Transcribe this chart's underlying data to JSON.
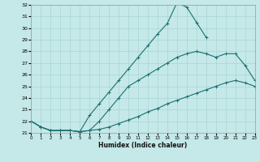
{
  "xlabel": "Humidex (Indice chaleur)",
  "background_color": "#c5e8e8",
  "grid_color": "#aad4d4",
  "line_color": "#1a7070",
  "xlim": [
    0,
    23
  ],
  "ylim": [
    21,
    32
  ],
  "yticks": [
    21,
    22,
    23,
    24,
    25,
    26,
    27,
    28,
    29,
    30,
    31,
    32
  ],
  "xticks": [
    0,
    1,
    2,
    3,
    4,
    5,
    6,
    7,
    8,
    9,
    10,
    11,
    12,
    13,
    14,
    15,
    16,
    17,
    18,
    19,
    20,
    21,
    22,
    23
  ],
  "series": [
    {
      "x": [
        0,
        1,
        2,
        3,
        4,
        5,
        6,
        7,
        8,
        9,
        10,
        11,
        12,
        13,
        14,
        15,
        16,
        17,
        18,
        19,
        20,
        21,
        22,
        23
      ],
      "y": [
        22.0,
        21.5,
        21.2,
        21.2,
        21.2,
        21.1,
        21.2,
        21.3,
        21.5,
        21.8,
        22.1,
        22.4,
        22.8,
        23.1,
        23.5,
        23.8,
        24.1,
        24.4,
        24.7,
        25.0,
        25.3,
        25.5,
        25.3,
        25.0
      ]
    },
    {
      "x": [
        0,
        1,
        2,
        3,
        4,
        5,
        6,
        7,
        8,
        9,
        10,
        11,
        12,
        13,
        14,
        15,
        16,
        17,
        18,
        19,
        20,
        21,
        22,
        23
      ],
      "y": [
        22.0,
        21.5,
        21.2,
        21.2,
        21.2,
        21.1,
        21.2,
        22.0,
        23.0,
        24.0,
        25.0,
        25.5,
        26.0,
        26.5,
        27.0,
        27.5,
        27.8,
        28.0,
        27.8,
        27.5,
        27.8,
        27.8,
        26.8,
        25.5
      ]
    },
    {
      "x": [
        0,
        1,
        2,
        3,
        4,
        5,
        6,
        7,
        8,
        9,
        10,
        11,
        12,
        13,
        14,
        15,
        16,
        17,
        18
      ],
      "y": [
        22.0,
        21.5,
        21.2,
        21.2,
        21.2,
        21.1,
        22.5,
        23.5,
        24.5,
        25.5,
        26.5,
        27.5,
        28.5,
        29.5,
        30.4,
        32.2,
        31.8,
        30.5,
        29.2
      ]
    }
  ]
}
